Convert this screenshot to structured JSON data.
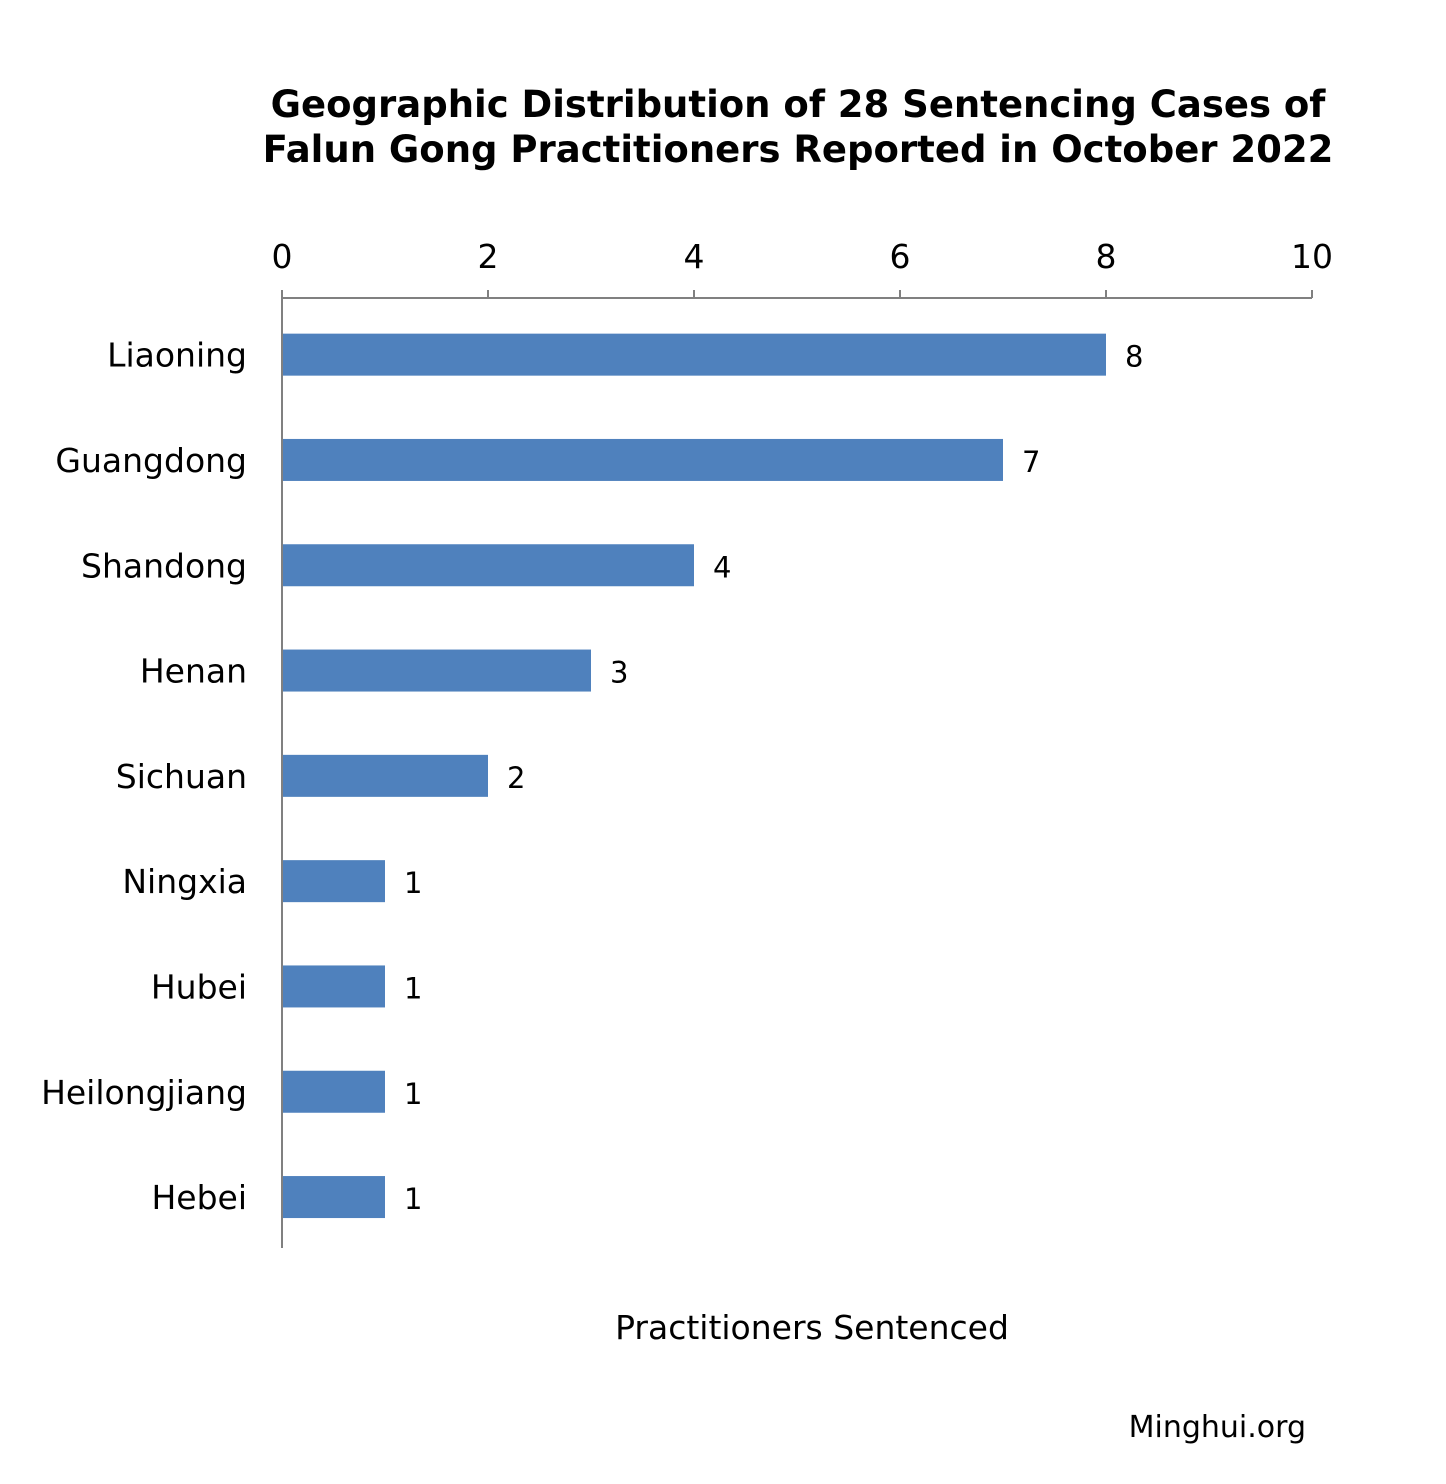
{
  "chart_data": {
    "type": "bar",
    "orientation": "horizontal",
    "title_lines": [
      "Geographic Distribution of 28 Sentencing Cases of",
      "Falun Gong Practitioners Reported in October 2022"
    ],
    "xlabel": "Practitioners Sentenced",
    "ylabel": "",
    "x_axis_position": "top",
    "xlim": [
      0,
      10
    ],
    "x_ticks": [
      0,
      2,
      4,
      6,
      8,
      10
    ],
    "categories": [
      "Liaoning",
      "Guangdong",
      "Shandong",
      "Henan",
      "Sichuan",
      "Ningxia",
      "Hubei",
      "Heilongjiang",
      "Hebei"
    ],
    "values": [
      8,
      7,
      4,
      3,
      2,
      1,
      1,
      1,
      1
    ],
    "data_labels": true,
    "grid": false,
    "legend": "none",
    "bar_color": "#4f81bd",
    "axis_color": "#808080"
  },
  "source": "Minghui.org"
}
